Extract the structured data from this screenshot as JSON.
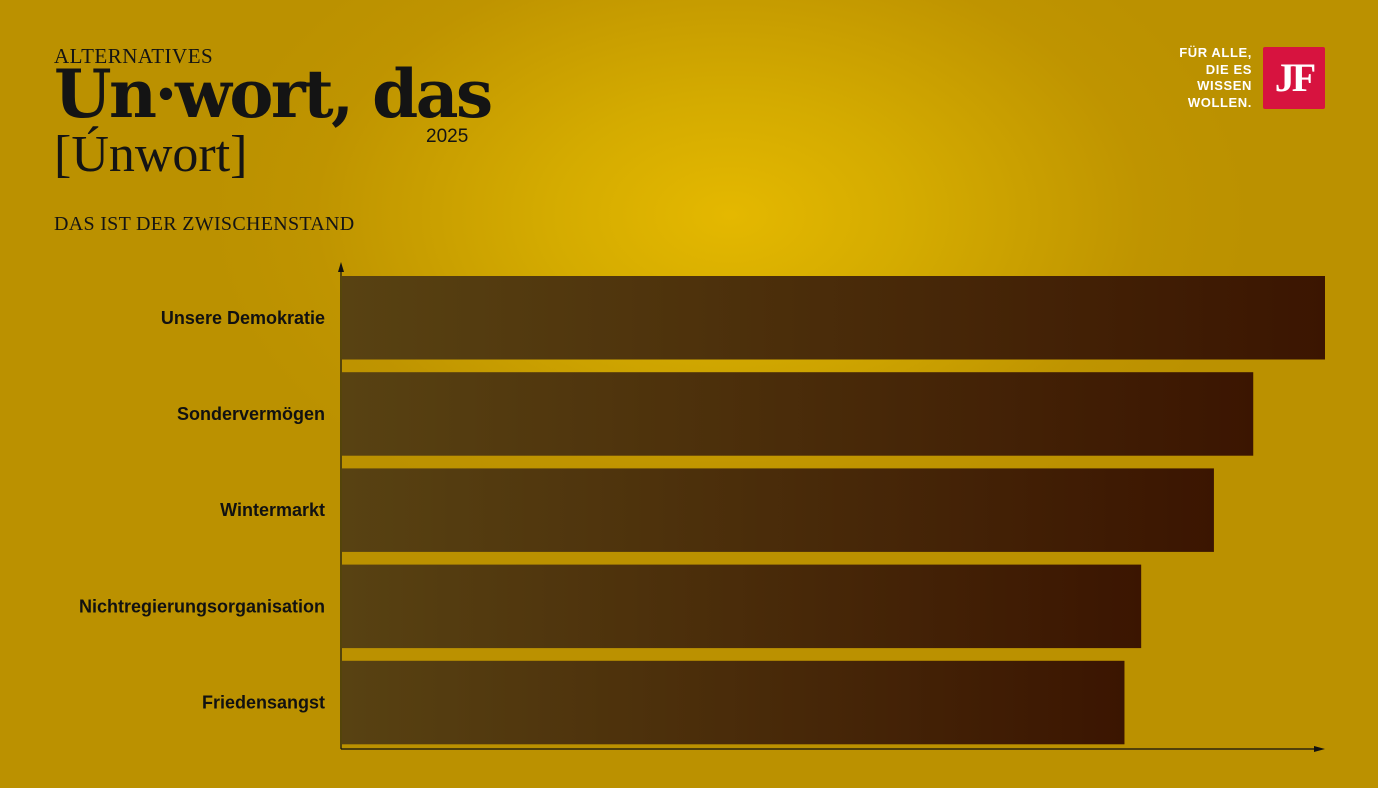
{
  "header": {
    "kicker": "ALTERNATIVES",
    "title": "Un·wort, das",
    "pronunciation": "[Únwort]",
    "year": "2025",
    "subtitle": "DAS IST DER ZWISCHENSTAND"
  },
  "brand": {
    "slogan_lines": [
      "FÜR ALLE,",
      "DIE ES",
      "WISSEN",
      "WOLLEN."
    ],
    "logo_text": "JF",
    "logo_color": "#d7133f"
  },
  "colors": {
    "background": "#c29a00",
    "bar_start": "#584212",
    "bar_end": "#3b1501"
  },
  "chart_data": {
    "type": "bar",
    "orientation": "horizontal",
    "categories": [
      "Unsere Demokratie",
      "Sondervermögen",
      "Wintermarkt",
      "Nichtregierungsorganisation",
      "Friedensangst"
    ],
    "values": [
      100,
      92.7,
      88.7,
      81.3,
      79.6
    ],
    "xlim": [
      0,
      100
    ],
    "title": "",
    "xlabel": "",
    "ylabel": "",
    "grid": false,
    "legend": "none"
  }
}
